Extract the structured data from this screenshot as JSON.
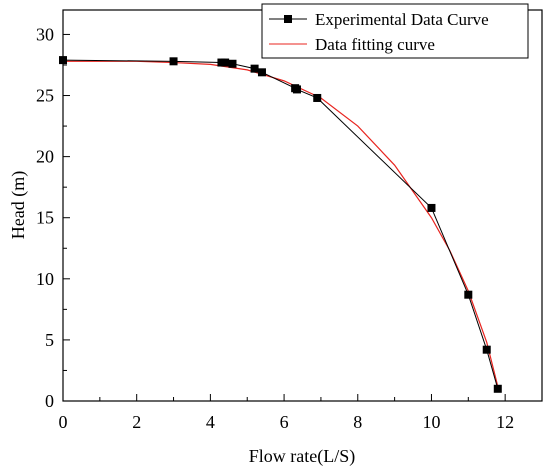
{
  "chart_data": {
    "type": "line",
    "xlabel": "Flow rate(L/S)",
    "ylabel": "Head (m)",
    "xlim": [
      0,
      13
    ],
    "ylim": [
      0,
      32
    ],
    "x_ticks": [
      0,
      2,
      4,
      6,
      8,
      10,
      12
    ],
    "y_ticks": [
      0,
      5,
      10,
      15,
      20,
      25,
      30
    ],
    "grid": false,
    "legend_position": "top-right",
    "series": [
      {
        "name": "Experimental Data Curve",
        "color": "#000000",
        "marker": "square",
        "points": [
          {
            "x": 0.0,
            "y": 27.9
          },
          {
            "x": 3.0,
            "y": 27.8
          },
          {
            "x": 4.3,
            "y": 27.7
          },
          {
            "x": 4.4,
            "y": 27.7
          },
          {
            "x": 4.6,
            "y": 27.6
          },
          {
            "x": 5.2,
            "y": 27.2
          },
          {
            "x": 5.4,
            "y": 26.9
          },
          {
            "x": 6.3,
            "y": 25.6
          },
          {
            "x": 6.35,
            "y": 25.5
          },
          {
            "x": 6.9,
            "y": 24.8
          },
          {
            "x": 10.0,
            "y": 15.8
          },
          {
            "x": 11.0,
            "y": 8.7
          },
          {
            "x": 11.5,
            "y": 4.2
          },
          {
            "x": 11.8,
            "y": 1.0
          }
        ]
      },
      {
        "name": "Data fitting curve",
        "color": "#e8241f",
        "marker": "none",
        "points": [
          {
            "x": 0.0,
            "y": 27.8
          },
          {
            "x": 1.0,
            "y": 27.8
          },
          {
            "x": 2.0,
            "y": 27.8
          },
          {
            "x": 3.0,
            "y": 27.7
          },
          {
            "x": 4.0,
            "y": 27.55
          },
          {
            "x": 5.0,
            "y": 27.1
          },
          {
            "x": 6.0,
            "y": 26.2
          },
          {
            "x": 7.0,
            "y": 24.8
          },
          {
            "x": 8.0,
            "y": 22.5
          },
          {
            "x": 9.0,
            "y": 19.3
          },
          {
            "x": 10.0,
            "y": 15.0
          },
          {
            "x": 10.5,
            "y": 12.3
          },
          {
            "x": 11.0,
            "y": 9.0
          },
          {
            "x": 11.5,
            "y": 4.8
          },
          {
            "x": 11.8,
            "y": 1.2
          }
        ]
      }
    ]
  }
}
